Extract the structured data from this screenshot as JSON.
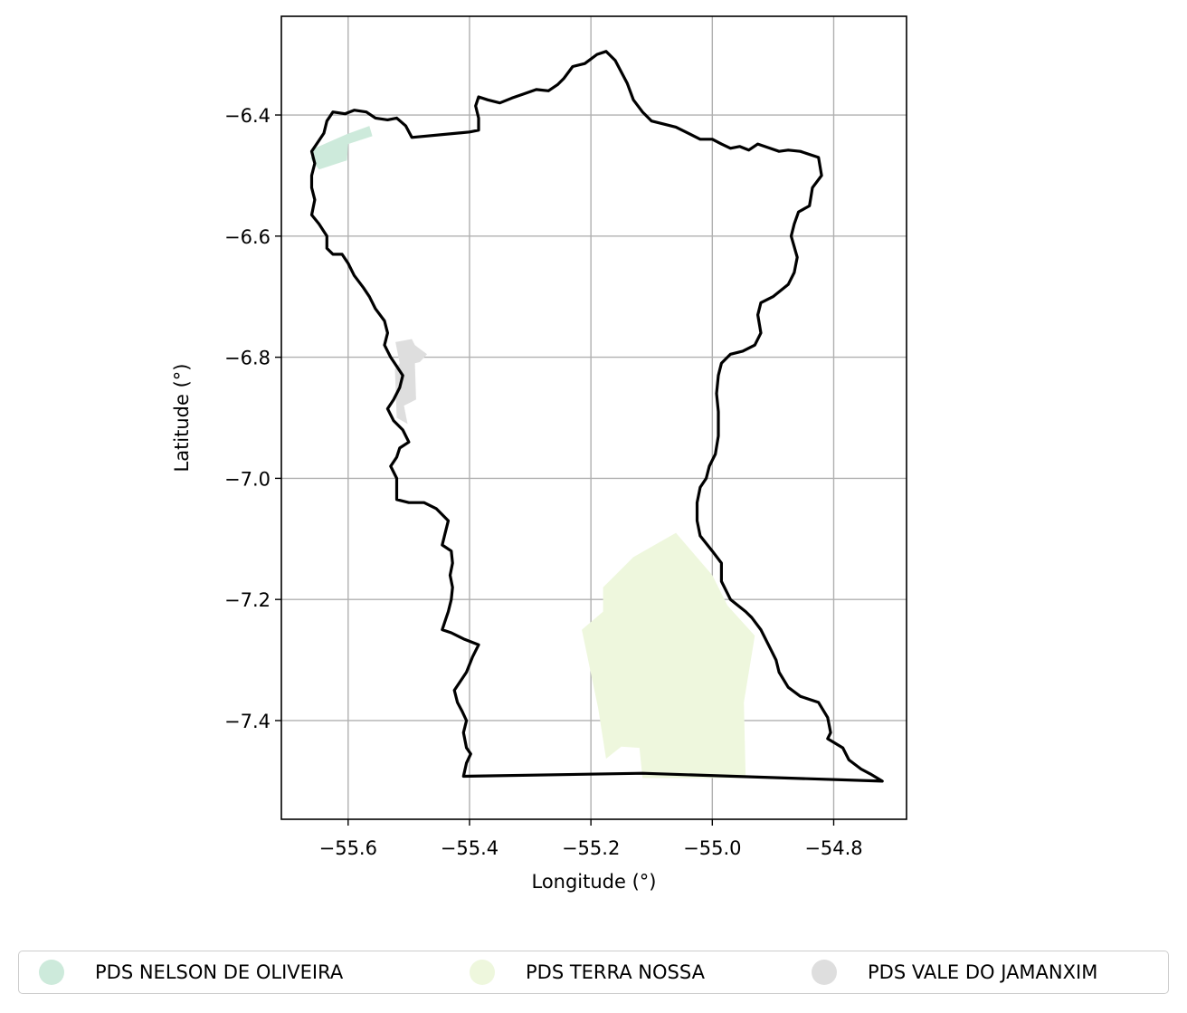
{
  "chart_data": {
    "type": "map",
    "xlabel": "Longitude (°)",
    "ylabel": "Latitude (°)",
    "xlim": [
      -55.71,
      -54.68
    ],
    "ylim": [
      -7.563,
      -6.237
    ],
    "x_ticks": [
      -55.6,
      -55.4,
      -55.2,
      -55.0,
      -54.8
    ],
    "x_tick_labels": [
      "−55.6",
      "−55.4",
      "−55.2",
      "−55.0",
      "−54.8"
    ],
    "y_ticks": [
      -6.4,
      -6.6,
      -6.8,
      -7.0,
      -7.2,
      -7.4
    ],
    "y_tick_labels": [
      "−6.4",
      "−6.6",
      "−6.8",
      "−7.0",
      "−7.2",
      "−7.4"
    ],
    "grid": true,
    "legend_position": "bottom-center",
    "boundary_color": "#000000",
    "series": [
      {
        "name": "PDS NELSON DE OLIVEIRA",
        "color": "#cdeadb",
        "polygon": [
          [
            -55.655,
            -6.455
          ],
          [
            -55.603,
            -6.432
          ],
          [
            -55.565,
            -6.418
          ],
          [
            -55.56,
            -6.435
          ],
          [
            -55.6,
            -6.448
          ],
          [
            -55.602,
            -6.475
          ],
          [
            -55.648,
            -6.49
          ],
          [
            -55.662,
            -6.472
          ]
        ]
      },
      {
        "name": "PDS TERRA NOSSA",
        "color": "#eef7dd",
        "polygon": [
          [
            -55.06,
            -7.09
          ],
          [
            -55.0,
            -7.16
          ],
          [
            -54.975,
            -7.21
          ],
          [
            -54.93,
            -7.26
          ],
          [
            -54.948,
            -7.37
          ],
          [
            -54.945,
            -7.495
          ],
          [
            -55.115,
            -7.495
          ],
          [
            -55.12,
            -7.445
          ],
          [
            -55.15,
            -7.443
          ],
          [
            -55.175,
            -7.463
          ],
          [
            -55.188,
            -7.38
          ],
          [
            -55.215,
            -7.25
          ],
          [
            -55.18,
            -7.22
          ],
          [
            -55.18,
            -7.18
          ],
          [
            -55.13,
            -7.13
          ]
        ]
      },
      {
        "name": "PDS VALE DO JAMANXIM",
        "color": "#dedede",
        "polygon": [
          [
            -55.522,
            -6.775
          ],
          [
            -55.495,
            -6.77
          ],
          [
            -55.49,
            -6.78
          ],
          [
            -55.47,
            -6.795
          ],
          [
            -55.482,
            -6.808
          ],
          [
            -55.49,
            -6.81
          ],
          [
            -55.488,
            -6.87
          ],
          [
            -55.508,
            -6.88
          ],
          [
            -55.502,
            -6.91
          ],
          [
            -55.52,
            -6.9
          ],
          [
            -55.523,
            -6.82
          ],
          [
            -55.515,
            -6.81
          ]
        ]
      }
    ],
    "boundary": [
      [
        -55.41,
        -7.492
      ],
      [
        -55.405,
        -7.47
      ],
      [
        -55.398,
        -7.455
      ],
      [
        -55.405,
        -7.445
      ],
      [
        -55.41,
        -7.42
      ],
      [
        -55.405,
        -7.4
      ],
      [
        -55.412,
        -7.385
      ],
      [
        -55.42,
        -7.37
      ],
      [
        -55.425,
        -7.35
      ],
      [
        -55.405,
        -7.32
      ],
      [
        -55.395,
        -7.295
      ],
      [
        -55.385,
        -7.275
      ],
      [
        -55.41,
        -7.265
      ],
      [
        -55.43,
        -7.255
      ],
      [
        -55.445,
        -7.25
      ],
      [
        -55.44,
        -7.235
      ],
      [
        -55.435,
        -7.22
      ],
      [
        -55.43,
        -7.2
      ],
      [
        -55.428,
        -7.18
      ],
      [
        -55.432,
        -7.16
      ],
      [
        -55.428,
        -7.14
      ],
      [
        -55.43,
        -7.12
      ],
      [
        -55.445,
        -7.11
      ],
      [
        -55.44,
        -7.09
      ],
      [
        -55.435,
        -7.07
      ],
      [
        -55.455,
        -7.05
      ],
      [
        -55.475,
        -7.04
      ],
      [
        -55.5,
        -7.04
      ],
      [
        -55.52,
        -7.035
      ],
      [
        -55.52,
        -7.0
      ],
      [
        -55.53,
        -6.98
      ],
      [
        -55.52,
        -6.965
      ],
      [
        -55.515,
        -6.95
      ],
      [
        -55.5,
        -6.94
      ],
      [
        -55.51,
        -6.92
      ],
      [
        -55.525,
        -6.905
      ],
      [
        -55.535,
        -6.885
      ],
      [
        -55.525,
        -6.87
      ],
      [
        -55.515,
        -6.85
      ],
      [
        -55.51,
        -6.83
      ],
      [
        -55.52,
        -6.815
      ],
      [
        -55.53,
        -6.8
      ],
      [
        -55.54,
        -6.78
      ],
      [
        -55.535,
        -6.76
      ],
      [
        -55.54,
        -6.74
      ],
      [
        -55.555,
        -6.72
      ],
      [
        -55.565,
        -6.7
      ],
      [
        -55.575,
        -6.685
      ],
      [
        -55.59,
        -6.665
      ],
      [
        -55.6,
        -6.645
      ],
      [
        -55.61,
        -6.63
      ],
      [
        -55.625,
        -6.63
      ],
      [
        -55.635,
        -6.62
      ],
      [
        -55.635,
        -6.6
      ],
      [
        -55.648,
        -6.58
      ],
      [
        -55.66,
        -6.565
      ],
      [
        -55.655,
        -6.54
      ],
      [
        -55.66,
        -6.52
      ],
      [
        -55.66,
        -6.5
      ],
      [
        -55.655,
        -6.48
      ],
      [
        -55.66,
        -6.46
      ],
      [
        -55.65,
        -6.445
      ],
      [
        -55.64,
        -6.43
      ],
      [
        -55.635,
        -6.41
      ],
      [
        -55.625,
        -6.395
      ],
      [
        -55.605,
        -6.398
      ],
      [
        -55.59,
        -6.392
      ],
      [
        -55.57,
        -6.395
      ],
      [
        -55.555,
        -6.405
      ],
      [
        -55.535,
        -6.408
      ],
      [
        -55.52,
        -6.405
      ],
      [
        -55.505,
        -6.418
      ],
      [
        -55.495,
        -6.437
      ],
      [
        -55.4,
        -6.428
      ],
      [
        -55.385,
        -6.425
      ],
      [
        -55.385,
        -6.405
      ],
      [
        -55.39,
        -6.385
      ],
      [
        -55.385,
        -6.37
      ],
      [
        -55.37,
        -6.375
      ],
      [
        -55.35,
        -6.38
      ],
      [
        -55.33,
        -6.372
      ],
      [
        -55.31,
        -6.365
      ],
      [
        -55.29,
        -6.358
      ],
      [
        -55.27,
        -6.36
      ],
      [
        -55.255,
        -6.35
      ],
      [
        -55.245,
        -6.34
      ],
      [
        -55.23,
        -6.32
      ],
      [
        -55.21,
        -6.315
      ],
      [
        -55.19,
        -6.3
      ],
      [
        -55.175,
        -6.295
      ],
      [
        -55.16,
        -6.31
      ],
      [
        -55.14,
        -6.348
      ],
      [
        -55.13,
        -6.375
      ],
      [
        -55.115,
        -6.395
      ],
      [
        -55.1,
        -6.41
      ],
      [
        -55.08,
        -6.415
      ],
      [
        -55.06,
        -6.42
      ],
      [
        -55.04,
        -6.43
      ],
      [
        -55.02,
        -6.44
      ],
      [
        -55.0,
        -6.44
      ],
      [
        -54.985,
        -6.448
      ],
      [
        -54.97,
        -6.455
      ],
      [
        -54.955,
        -6.452
      ],
      [
        -54.94,
        -6.458
      ],
      [
        -54.925,
        -6.448
      ],
      [
        -54.905,
        -6.455
      ],
      [
        -54.89,
        -6.46
      ],
      [
        -54.875,
        -6.458
      ],
      [
        -54.855,
        -6.46
      ],
      [
        -54.825,
        -6.47
      ],
      [
        -54.82,
        -6.5
      ],
      [
        -54.835,
        -6.52
      ],
      [
        -54.84,
        -6.55
      ],
      [
        -54.858,
        -6.56
      ],
      [
        -54.865,
        -6.58
      ],
      [
        -54.87,
        -6.6
      ],
      [
        -54.86,
        -6.635
      ],
      [
        -54.865,
        -6.66
      ],
      [
        -54.875,
        -6.68
      ],
      [
        -54.9,
        -6.7
      ],
      [
        -54.92,
        -6.71
      ],
      [
        -54.925,
        -6.73
      ],
      [
        -54.92,
        -6.76
      ],
      [
        -54.93,
        -6.78
      ],
      [
        -54.95,
        -6.79
      ],
      [
        -54.97,
        -6.795
      ],
      [
        -54.985,
        -6.81
      ],
      [
        -54.99,
        -6.83
      ],
      [
        -54.993,
        -6.86
      ],
      [
        -54.99,
        -6.89
      ],
      [
        -54.99,
        -6.93
      ],
      [
        -54.995,
        -6.96
      ],
      [
        -55.005,
        -6.98
      ],
      [
        -55.01,
        -7.0
      ],
      [
        -55.02,
        -7.015
      ],
      [
        -55.025,
        -7.04
      ],
      [
        -55.025,
        -7.07
      ],
      [
        -55.02,
        -7.095
      ],
      [
        -55.0,
        -7.12
      ],
      [
        -54.985,
        -7.14
      ],
      [
        -54.985,
        -7.17
      ],
      [
        -54.97,
        -7.2
      ],
      [
        -54.945,
        -7.22
      ],
      [
        -54.935,
        -7.23
      ],
      [
        -54.92,
        -7.25
      ],
      [
        -54.905,
        -7.28
      ],
      [
        -54.895,
        -7.3
      ],
      [
        -54.89,
        -7.32
      ],
      [
        -54.875,
        -7.345
      ],
      [
        -54.855,
        -7.36
      ],
      [
        -54.825,
        -7.37
      ],
      [
        -54.81,
        -7.395
      ],
      [
        -54.805,
        -7.42
      ],
      [
        -54.81,
        -7.43
      ],
      [
        -54.785,
        -7.445
      ],
      [
        -54.775,
        -7.465
      ],
      [
        -54.755,
        -7.48
      ],
      [
        -54.74,
        -7.488
      ],
      [
        -54.72,
        -7.5
      ],
      [
        -55.115,
        -7.487
      ],
      [
        -55.41,
        -7.492
      ]
    ]
  },
  "legend": {
    "items": [
      {
        "label": "PDS NELSON DE OLIVEIRA",
        "color": "#cdeadb"
      },
      {
        "label": "PDS TERRA NOSSA",
        "color": "#eef7dd"
      },
      {
        "label": "PDS VALE DO JAMANXIM",
        "color": "#dedede"
      }
    ]
  }
}
